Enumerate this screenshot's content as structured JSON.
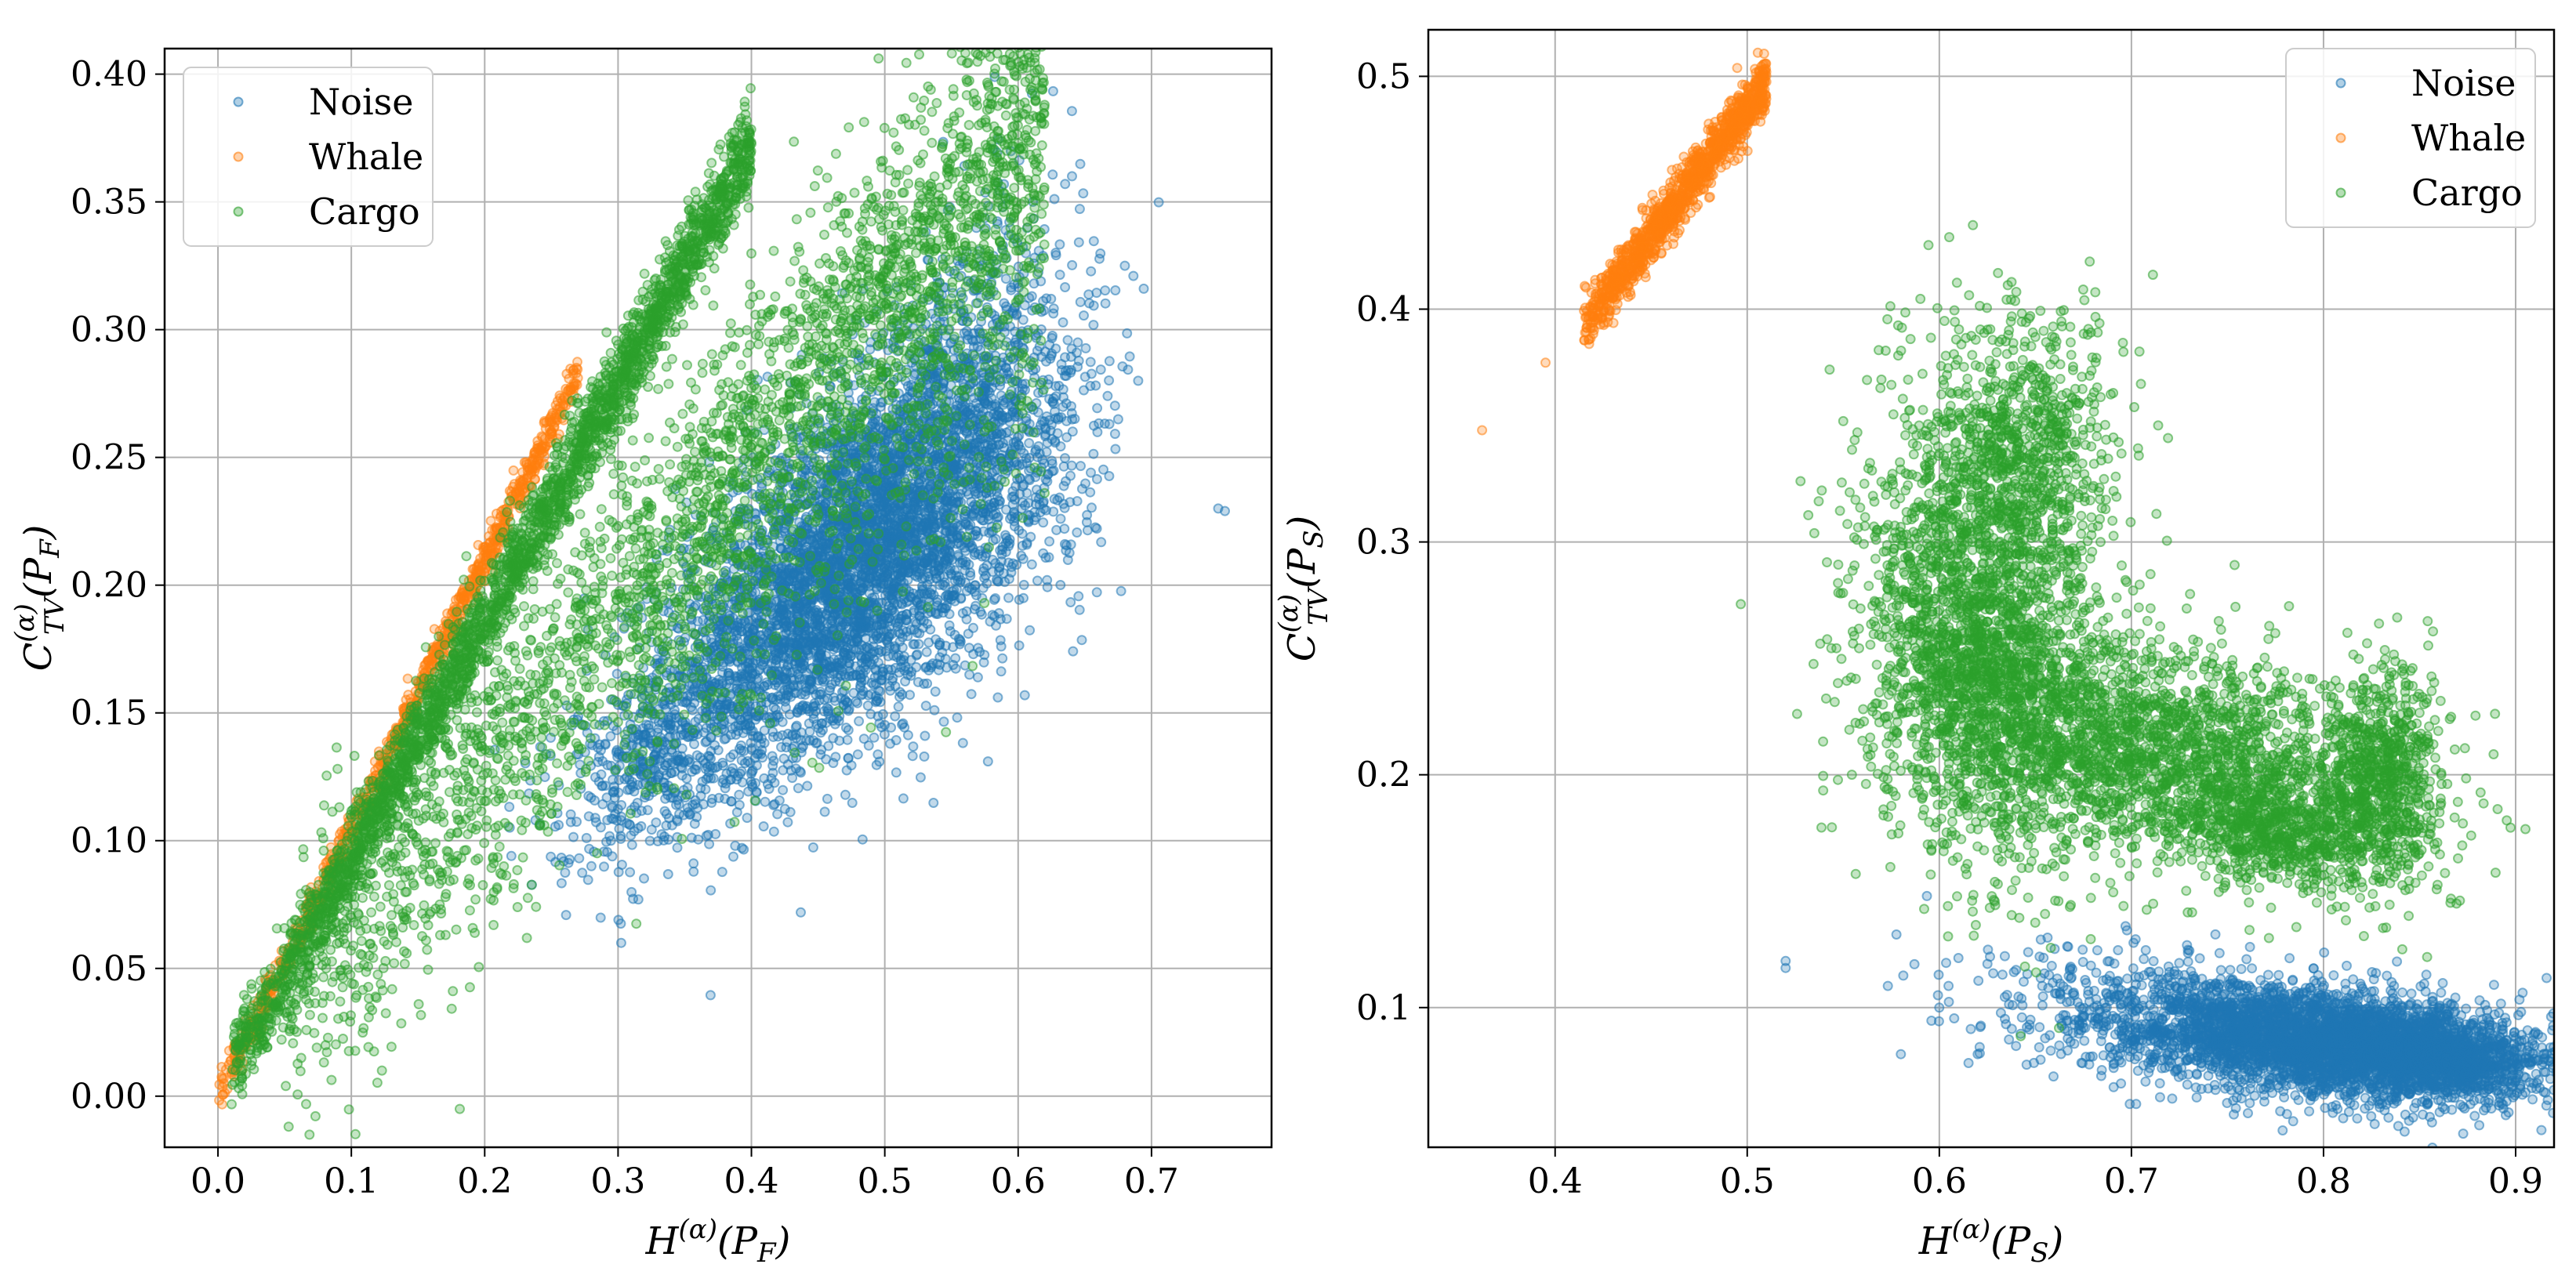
{
  "figure": "Entropy-complexity planes",
  "chart_data": [
    {
      "type": "scatter",
      "title": "",
      "xlabel": "H^(α)(P_F)",
      "ylabel": "C^(α)_TV(P_F)",
      "xlim": [
        -0.04,
        0.79
      ],
      "ylim": [
        -0.02,
        0.41
      ],
      "xticks": [
        0.0,
        0.1,
        0.2,
        0.3,
        0.4,
        0.5,
        0.6,
        0.7
      ],
      "xtick_labels": [
        "0.0",
        "0.1",
        "0.2",
        "0.3",
        "0.4",
        "0.5",
        "0.6",
        "0.7"
      ],
      "yticks": [
        0.0,
        0.05,
        0.1,
        0.15,
        0.2,
        0.25,
        0.3,
        0.35,
        0.4
      ],
      "ytick_labels": [
        "0.00",
        "0.05",
        "0.10",
        "0.15",
        "0.20",
        "0.25",
        "0.30",
        "0.35",
        "0.40"
      ],
      "grid": true,
      "legend_position": "top-left",
      "series": [
        {
          "name": "Noise",
          "color": "#1f77b4",
          "clusters": [
            {
              "n": 4200,
              "cx": 0.47,
              "cy": 0.205,
              "sx": 0.065,
              "sy": 0.038,
              "rho": 0.55
            },
            {
              "n": 900,
              "cx": 0.55,
              "cy": 0.27,
              "sx": 0.045,
              "sy": 0.04,
              "rho": 0.5
            },
            {
              "n": 500,
              "cx": 0.33,
              "cy": 0.135,
              "sx": 0.04,
              "sy": 0.022,
              "rho": 0.5
            },
            {
              "n": 300,
              "cx": 0.6,
              "cy": 0.24,
              "sx": 0.04,
              "sy": 0.035,
              "rho": 0.3
            }
          ],
          "outliers": [
            [
              0.75,
              0.23
            ],
            [
              0.755,
              0.229
            ],
            [
              0.68,
              0.325
            ],
            [
              0.69,
              0.28
            ],
            [
              0.28,
              0.09
            ],
            [
              0.22,
              0.094
            ]
          ]
        },
        {
          "name": "Whale",
          "color": "#ff7f0e",
          "bands": [
            {
              "n": 900,
              "x0": 0.0,
              "x1": 0.27,
              "slope": 1.05,
              "intercept": 0.0,
              "w": 0.004
            }
          ]
        },
        {
          "name": "Cargo",
          "color": "#2ca02c",
          "bands": [
            {
              "n": 2800,
              "x0": 0.01,
              "x1": 0.4,
              "slope": 0.93,
              "intercept": 0.0,
              "w": 0.009
            },
            {
              "n": 2400,
              "x0": 0.05,
              "x1": 0.62,
              "slope": 0.63,
              "intercept": 0.0,
              "w": 0.03
            },
            {
              "n": 900,
              "x0": 0.3,
              "x1": 0.62,
              "slope": 0.55,
              "intercept": 0.0,
              "w": 0.045
            }
          ]
        }
      ]
    },
    {
      "type": "scatter",
      "title": "",
      "xlabel": "H^(α)(P_S)",
      "ylabel": "C^(α)_TV(P_S)",
      "xlim": [
        0.334,
        0.92
      ],
      "ylim": [
        0.04,
        0.52
      ],
      "xticks": [
        0.4,
        0.5,
        0.6,
        0.7,
        0.8,
        0.9
      ],
      "xtick_labels": [
        "0.4",
        "0.5",
        "0.6",
        "0.7",
        "0.8",
        "0.9"
      ],
      "yticks": [
        0.1,
        0.2,
        0.3,
        0.4,
        0.5
      ],
      "ytick_labels": [
        "0.1",
        "0.2",
        "0.3",
        "0.4",
        "0.5"
      ],
      "grid": true,
      "legend_position": "top-right",
      "series": [
        {
          "name": "Noise",
          "color": "#1f77b4",
          "clusters": [
            {
              "n": 3600,
              "cx": 0.8,
              "cy": 0.085,
              "sx": 0.055,
              "sy": 0.012,
              "rho": -0.3
            },
            {
              "n": 900,
              "cx": 0.86,
              "cy": 0.078,
              "sx": 0.025,
              "sy": 0.008,
              "rho": -0.3
            },
            {
              "n": 300,
              "cx": 0.7,
              "cy": 0.1,
              "sx": 0.05,
              "sy": 0.015,
              "rho": -0.3
            }
          ],
          "outliers": [
            [
              0.52,
              0.12
            ],
            [
              0.52,
              0.117
            ],
            [
              0.58,
              0.08
            ],
            [
              0.6,
              0.1
            ],
            [
              0.62,
              0.08
            ]
          ]
        },
        {
          "name": "Whale",
          "color": "#ff7f0e",
          "bands": [
            {
              "n": 1200,
              "x0": 0.415,
              "x1": 0.51,
              "slope": 1.1,
              "intercept": -0.0635,
              "w": 0.006
            }
          ],
          "outliers": [
            [
              0.362,
              0.348
            ],
            [
              0.395,
              0.377
            ]
          ]
        },
        {
          "name": "Cargo",
          "color": "#2ca02c",
          "clusters": [
            {
              "n": 2200,
              "cx": 0.62,
              "cy": 0.25,
              "sx": 0.03,
              "sy": 0.045,
              "rho": -0.2
            },
            {
              "n": 2200,
              "cx": 0.72,
              "cy": 0.21,
              "sx": 0.06,
              "sy": 0.025,
              "rho": -0.4
            },
            {
              "n": 900,
              "cx": 0.64,
              "cy": 0.34,
              "sx": 0.025,
              "sy": 0.03,
              "rho": 0.0
            },
            {
              "n": 700,
              "cx": 0.83,
              "cy": 0.2,
              "sx": 0.015,
              "sy": 0.022,
              "rho": 0.0
            },
            {
              "n": 600,
              "cx": 0.78,
              "cy": 0.175,
              "sx": 0.03,
              "sy": 0.012,
              "rho": -0.3
            }
          ]
        }
      ]
    }
  ]
}
